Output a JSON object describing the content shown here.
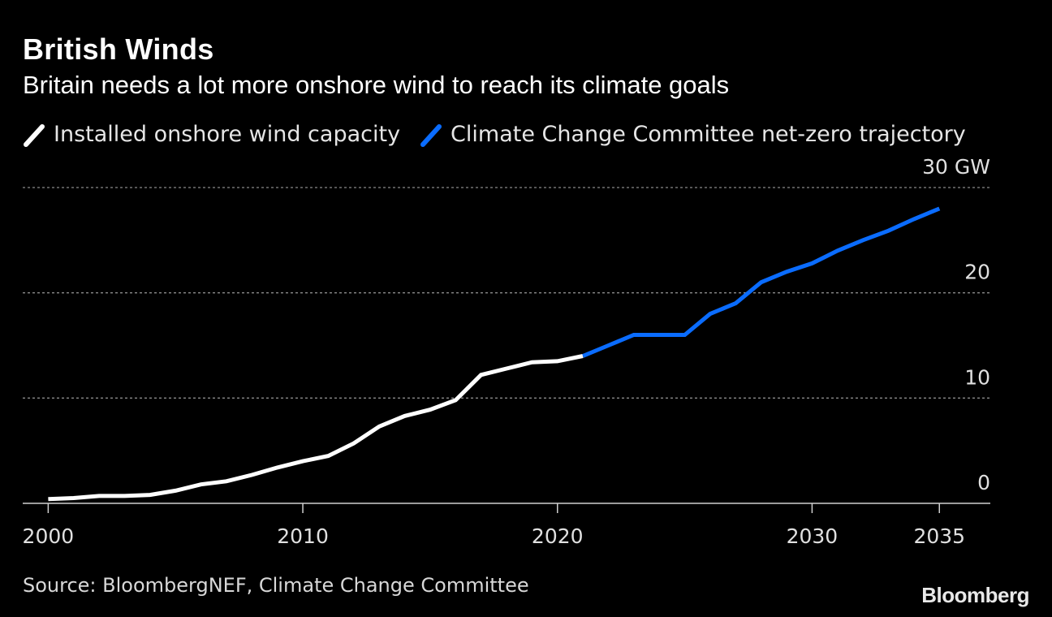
{
  "title": "British Winds",
  "subtitle": "Britain needs a lot more onshore wind to reach its climate goals",
  "source": "Source: BloombergNEF, Climate Change Committee",
  "brand": "Bloomberg",
  "colors": {
    "installed": "#ffffff",
    "trajectory": "#0a6cff",
    "grid": "#8a8a8a",
    "axis": "#cfcfcf"
  },
  "chart_data": {
    "type": "line",
    "title": "British Winds",
    "subtitle": "Britain needs a lot more onshore wind to reach its climate goals",
    "ylabel": "GW",
    "xlim": [
      1999,
      2037
    ],
    "ylim": [
      0,
      30
    ],
    "x_ticks": [
      2000,
      2010,
      2020,
      2030,
      2035
    ],
    "x_tick_labels": [
      "2000",
      "2010",
      "2020",
      "2030",
      "2035"
    ],
    "y_ticks": [
      0,
      10,
      20,
      30
    ],
    "y_tick_labels": [
      "0",
      "10",
      "20",
      "30 GW"
    ],
    "grid": true,
    "legend_position": "top-left",
    "series": [
      {
        "name": "Installed onshore wind capacity",
        "color": "#ffffff",
        "x": [
          2000,
          2001,
          2002,
          2003,
          2004,
          2005,
          2006,
          2007,
          2008,
          2009,
          2010,
          2011,
          2012,
          2013,
          2014,
          2015,
          2016,
          2017,
          2018,
          2019,
          2020,
          2021
        ],
        "y": [
          0.4,
          0.5,
          0.7,
          0.7,
          0.8,
          1.2,
          1.8,
          2.1,
          2.7,
          3.4,
          4.0,
          4.5,
          5.7,
          7.3,
          8.3,
          8.9,
          9.8,
          12.2,
          12.8,
          13.4,
          13.5,
          14.0
        ]
      },
      {
        "name": "Climate Change Committee net-zero trajectory",
        "color": "#0a6cff",
        "x": [
          2021,
          2022,
          2023,
          2024,
          2025,
          2026,
          2027,
          2028,
          2029,
          2030,
          2031,
          2032,
          2033,
          2034,
          2035
        ],
        "y": [
          14.0,
          15.0,
          16.0,
          16.0,
          16.0,
          18.0,
          19.0,
          21.0,
          22.0,
          22.8,
          24.0,
          25.0,
          25.9,
          27.0,
          28.0
        ]
      }
    ]
  }
}
